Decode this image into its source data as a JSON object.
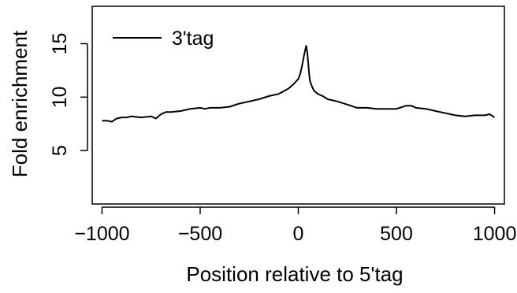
{
  "chart_data": {
    "type": "line",
    "title": "",
    "xlabel": "Position relative to 5'tag",
    "ylabel": "Fold enrichment",
    "xlim": [
      -1050,
      1050
    ],
    "ylim": [
      0,
      18.5
    ],
    "x_ticks": [
      -1000,
      -500,
      0,
      500,
      1000
    ],
    "x_tick_labels": [
      "−1000",
      "−500",
      "0",
      "500",
      "1000"
    ],
    "y_ticks": [
      5,
      10,
      15
    ],
    "y_tick_labels": [
      "5",
      "10",
      "15"
    ],
    "grid": false,
    "legend": {
      "position": "top-left",
      "entries": [
        "3'tag"
      ]
    },
    "series": [
      {
        "name": "3'tag",
        "color": "#000000",
        "x": [
          -1000,
          -975,
          -950,
          -925,
          -900,
          -875,
          -850,
          -800,
          -750,
          -725,
          -700,
          -675,
          -650,
          -600,
          -575,
          -550,
          -500,
          -475,
          -450,
          -400,
          -350,
          -300,
          -250,
          -200,
          -150,
          -100,
          -50,
          -25,
          0,
          10,
          20,
          30,
          40,
          45,
          50,
          55,
          60,
          70,
          80,
          100,
          125,
          150,
          200,
          250,
          300,
          350,
          400,
          450,
          500,
          550,
          575,
          600,
          650,
          700,
          750,
          800,
          850,
          900,
          950,
          975,
          1000
        ],
        "values": [
          7.8,
          7.8,
          7.7,
          8.0,
          8.1,
          8.1,
          8.2,
          8.1,
          8.2,
          8.0,
          8.4,
          8.6,
          8.6,
          8.7,
          8.8,
          8.9,
          9.0,
          8.9,
          9.0,
          9.0,
          9.1,
          9.4,
          9.6,
          9.8,
          10.1,
          10.3,
          10.8,
          11.2,
          11.7,
          12.2,
          13.0,
          14.0,
          14.8,
          14.3,
          13.3,
          12.2,
          11.5,
          11.0,
          10.6,
          10.3,
          10.1,
          9.8,
          9.6,
          9.3,
          9.0,
          9.0,
          8.9,
          8.9,
          8.9,
          9.2,
          9.2,
          9.0,
          8.9,
          8.7,
          8.5,
          8.3,
          8.2,
          8.3,
          8.3,
          8.4,
          8.1
        ]
      }
    ]
  }
}
